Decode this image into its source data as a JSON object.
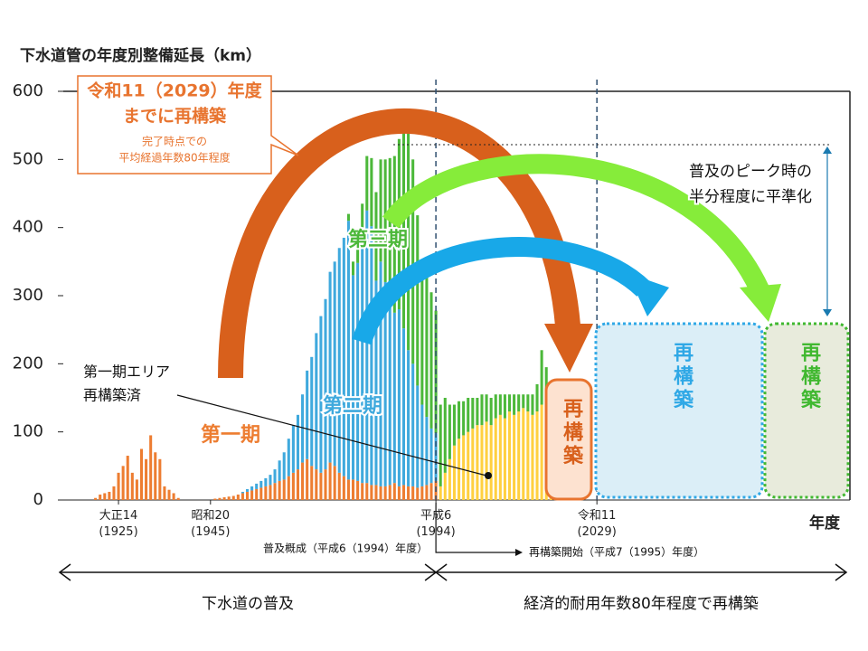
{
  "chart_data": {
    "type": "bar",
    "stacked": true,
    "title": "下水道管の年度別整備延長（km）",
    "xlabel": "年度",
    "x": [
      1920,
      1921,
      1922,
      1923,
      1924,
      1925,
      1926,
      1927,
      1928,
      1929,
      1930,
      1931,
      1932,
      1933,
      1934,
      1935,
      1936,
      1937,
      1938,
      1939,
      1940,
      1941,
      1942,
      1943,
      1944,
      1945,
      1946,
      1947,
      1948,
      1949,
      1950,
      1951,
      1952,
      1953,
      1954,
      1955,
      1956,
      1957,
      1958,
      1959,
      1960,
      1961,
      1962,
      1963,
      1964,
      1965,
      1966,
      1967,
      1968,
      1969,
      1970,
      1971,
      1972,
      1973,
      1974,
      1975,
      1976,
      1977,
      1978,
      1979,
      1980,
      1981,
      1982,
      1983,
      1984,
      1985,
      1986,
      1987,
      1988,
      1989,
      1990,
      1991,
      1992,
      1993,
      1994,
      1995,
      1996,
      1997,
      1998,
      1999,
      2000,
      2001,
      2002,
      2003,
      2004,
      2005,
      2006,
      2007,
      2008,
      2009,
      2010,
      2011,
      2012,
      2013,
      2014,
      2015,
      2016,
      2017,
      2018,
      2019,
      2020,
      2021
    ],
    "series": [
      {
        "name": "第一期",
        "color": "#ed7d31",
        "values": [
          3,
          8,
          10,
          12,
          20,
          40,
          50,
          65,
          40,
          30,
          75,
          60,
          95,
          70,
          60,
          20,
          15,
          10,
          3,
          0,
          0,
          0,
          0,
          0,
          0,
          0,
          2,
          3,
          4,
          5,
          6,
          8,
          10,
          12,
          14,
          16,
          18,
          20,
          22,
          25,
          28,
          30,
          35,
          40,
          45,
          55,
          60,
          50,
          45,
          40,
          45,
          55,
          50,
          40,
          35,
          30,
          30,
          28,
          25,
          25,
          22,
          22,
          20,
          20,
          22,
          25,
          20,
          22,
          20,
          20,
          18,
          20,
          22,
          25,
          28,
          0,
          0,
          0,
          0,
          0,
          0,
          0,
          0,
          0,
          0,
          0,
          0,
          0,
          0,
          0,
          0,
          0,
          0,
          0,
          0,
          0,
          0,
          0,
          0,
          0,
          0,
          0
        ]
      },
      {
        "name": "第二期",
        "color": "#3fa9dd",
        "values": [
          0,
          0,
          0,
          0,
          0,
          0,
          0,
          0,
          0,
          0,
          0,
          0,
          0,
          0,
          0,
          0,
          0,
          0,
          0,
          0,
          0,
          0,
          0,
          0,
          0,
          0,
          0,
          0,
          0,
          0,
          0,
          0,
          2,
          4,
          6,
          8,
          10,
          12,
          15,
          20,
          30,
          40,
          55,
          70,
          80,
          100,
          130,
          160,
          200,
          230,
          250,
          280,
          300,
          330,
          350,
          380,
          300,
          320,
          350,
          400,
          380,
          300,
          330,
          300,
          280,
          250,
          260,
          230,
          200,
          180,
          150,
          120,
          100,
          80,
          70,
          0,
          0,
          0,
          0,
          0,
          0,
          0,
          0,
          0,
          0,
          0,
          0,
          0,
          0,
          0,
          0,
          0,
          0,
          0,
          0,
          0,
          0,
          0,
          0,
          0,
          0,
          0
        ]
      },
      {
        "color": "#ffd040",
        "values": [
          0,
          0,
          0,
          0,
          0,
          0,
          0,
          0,
          0,
          0,
          0,
          0,
          0,
          0,
          0,
          0,
          0,
          0,
          0,
          0,
          0,
          0,
          0,
          0,
          0,
          0,
          0,
          0,
          0,
          0,
          0,
          0,
          0,
          0,
          0,
          0,
          0,
          0,
          0,
          0,
          0,
          0,
          0,
          0,
          0,
          0,
          0,
          0,
          0,
          0,
          0,
          0,
          0,
          0,
          0,
          0,
          0,
          0,
          0,
          0,
          0,
          0,
          0,
          0,
          0,
          0,
          0,
          0,
          0,
          0,
          0,
          0,
          0,
          0,
          0,
          20,
          40,
          60,
          80,
          90,
          95,
          100,
          105,
          110,
          110,
          115,
          110,
          120,
          125,
          120,
          130,
          125,
          130,
          135,
          130,
          125,
          130,
          140,
          135,
          130,
          140,
          120
        ]
      },
      {
        "name": "第三期",
        "color": "#4cb83a",
        "values": [
          0,
          0,
          0,
          0,
          0,
          0,
          0,
          0,
          0,
          0,
          0,
          0,
          0,
          0,
          0,
          0,
          0,
          0,
          0,
          0,
          0,
          0,
          0,
          0,
          0,
          0,
          0,
          0,
          0,
          0,
          0,
          0,
          0,
          0,
          0,
          0,
          0,
          0,
          0,
          0,
          0,
          0,
          0,
          0,
          0,
          0,
          0,
          0,
          0,
          0,
          0,
          0,
          0,
          0,
          0,
          10,
          20,
          40,
          60,
          80,
          100,
          130,
          150,
          180,
          200,
          230,
          250,
          300,
          350,
          300,
          250,
          200,
          220,
          200,
          180,
          120,
          110,
          80,
          60,
          55,
          50,
          50,
          45,
          40,
          45,
          40,
          40,
          35,
          30,
          35,
          25,
          30,
          25,
          20,
          25,
          30,
          40,
          80,
          60,
          40,
          20,
          20
        ]
      }
    ],
    "xlim": [
      1913,
      2084
    ],
    "xticks": [
      {
        "value": 1925,
        "label": "大正14\n(1925)"
      },
      {
        "value": 1945,
        "label": "昭和20\n(1945)"
      },
      {
        "value": 1994,
        "label": "平成6\n(1994)"
      },
      {
        "value": 2029,
        "label": "令和11\n(2029)"
      }
    ],
    "ylim": [
      0,
      600
    ],
    "yticks": [
      0,
      100,
      200,
      300,
      400,
      500,
      600
    ],
    "grid": false,
    "callout": {
      "title": [
        "令和11（2029）年度",
        "までに再構築"
      ],
      "note": [
        "完了時点での",
        "平均経過年数80年程度"
      ]
    },
    "leveling_note": [
      "普及のピーク時の",
      "半分程度に平準化"
    ],
    "area_note": [
      "第一期エリア",
      "再構築済"
    ],
    "rebuild_boxes": [
      "再構築",
      "再構築",
      "再構築"
    ],
    "milestones": [
      "普及概成（平成6（1994）年度）",
      "再構築開始（平成7（1995）年度）"
    ],
    "eras": [
      "下水道の普及",
      "経済的耐用年数80年程度で再構築"
    ]
  }
}
